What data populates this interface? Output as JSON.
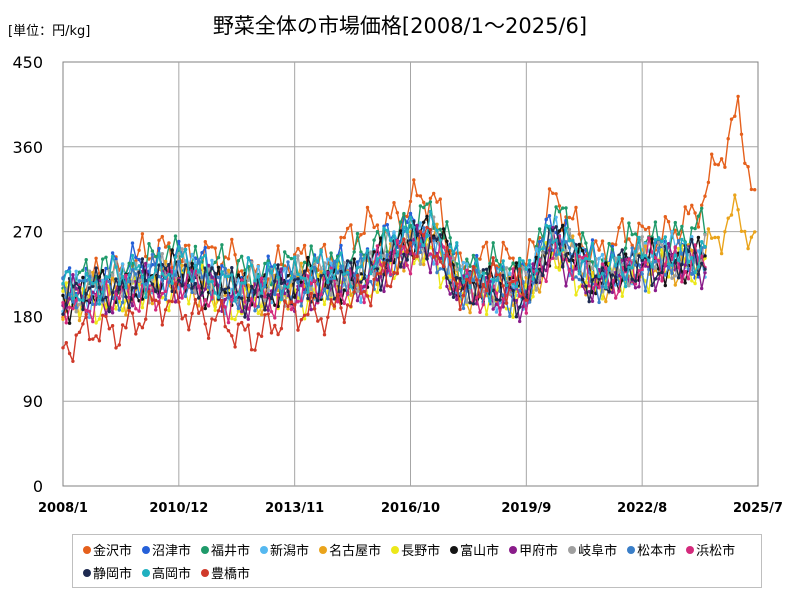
{
  "unit_label": "[単位：円/kg]",
  "chart_data": {
    "type": "line",
    "title": "野菜全体の市場価格[2008/1～2025/6]",
    "xlabel": "",
    "ylabel": "",
    "x_start": "2008-01",
    "x_end": "2025-07",
    "ylim": [
      0,
      450
    ],
    "yticks": [
      0,
      90,
      180,
      270,
      360,
      450
    ],
    "xticks": [
      "2008/1",
      "2010/12",
      "2013/11",
      "2016/10",
      "2019/9",
      "2022/8",
      "2025/7"
    ],
    "grid": true,
    "legend_position": "bottom",
    "series": [
      {
        "name": "金沢市",
        "color": "#e5601c",
        "end": "2025-06",
        "anchors": [
          [
            "2008-01",
            195
          ],
          [
            "2010-01",
            245
          ],
          [
            "2011-08",
            245
          ],
          [
            "2013-01",
            225
          ],
          [
            "2014-09",
            245
          ],
          [
            "2016-10",
            300
          ],
          [
            "2017-05",
            300
          ],
          [
            "2018-01",
            235
          ],
          [
            "2019-09",
            240
          ],
          [
            "2020-05",
            300
          ],
          [
            "2021-06",
            250
          ],
          [
            "2022-08",
            265
          ],
          [
            "2023-12",
            280
          ],
          [
            "2024-06",
            340
          ],
          [
            "2025-01",
            400
          ],
          [
            "2025-06",
            300
          ]
        ]
      },
      {
        "name": "沼津市",
        "color": "#2560d8",
        "end": "2024-03",
        "anchors": [
          [
            "2008-01",
            210
          ],
          [
            "2009-06",
            230
          ],
          [
            "2010-12",
            240
          ],
          [
            "2012-06",
            220
          ],
          [
            "2013-11",
            225
          ],
          [
            "2015-06",
            235
          ],
          [
            "2016-10",
            275
          ],
          [
            "2017-05",
            275
          ],
          [
            "2018-01",
            225
          ],
          [
            "2019-09",
            215
          ],
          [
            "2020-05",
            285
          ],
          [
            "2021-06",
            230
          ],
          [
            "2022-08",
            245
          ],
          [
            "2024-03",
            240
          ]
        ]
      },
      {
        "name": "福井市",
        "color": "#1f9a6a",
        "end": "2024-03",
        "anchors": [
          [
            "2008-01",
            215
          ],
          [
            "2009-06",
            225
          ],
          [
            "2010-12",
            245
          ],
          [
            "2012-06",
            225
          ],
          [
            "2013-11",
            230
          ],
          [
            "2015-06",
            240
          ],
          [
            "2016-10",
            280
          ],
          [
            "2017-05",
            285
          ],
          [
            "2018-01",
            235
          ],
          [
            "2019-09",
            225
          ],
          [
            "2020-05",
            290
          ],
          [
            "2021-06",
            235
          ],
          [
            "2022-08",
            260
          ],
          [
            "2024-03",
            270
          ]
        ]
      },
      {
        "name": "新潟市",
        "color": "#55b8f0",
        "end": "2024-03",
        "anchors": [
          [
            "2008-01",
            200
          ],
          [
            "2009-06",
            210
          ],
          [
            "2010-12",
            230
          ],
          [
            "2012-06",
            205
          ],
          [
            "2013-11",
            215
          ],
          [
            "2015-06",
            220
          ],
          [
            "2016-10",
            260
          ],
          [
            "2017-05",
            260
          ],
          [
            "2018-01",
            215
          ],
          [
            "2019-09",
            205
          ],
          [
            "2020-05",
            270
          ],
          [
            "2021-06",
            220
          ],
          [
            "2022-08",
            240
          ],
          [
            "2024-03",
            250
          ]
        ]
      },
      {
        "name": "名古屋市",
        "color": "#eaa41c",
        "end": "2025-06",
        "anchors": [
          [
            "2008-01",
            195
          ],
          [
            "2009-06",
            205
          ],
          [
            "2010-12",
            220
          ],
          [
            "2012-06",
            200
          ],
          [
            "2013-11",
            210
          ],
          [
            "2015-06",
            215
          ],
          [
            "2016-10",
            255
          ],
          [
            "2017-05",
            255
          ],
          [
            "2018-01",
            210
          ],
          [
            "2019-09",
            205
          ],
          [
            "2020-05",
            255
          ],
          [
            "2021-06",
            215
          ],
          [
            "2022-08",
            235
          ],
          [
            "2024-03",
            240
          ],
          [
            "2025-01",
            300
          ],
          [
            "2025-06",
            250
          ]
        ]
      },
      {
        "name": "長野市",
        "color": "#ece81a",
        "end": "2024-03",
        "anchors": [
          [
            "2008-01",
            190
          ],
          [
            "2009-06",
            200
          ],
          [
            "2010-12",
            215
          ],
          [
            "2012-06",
            195
          ],
          [
            "2013-11",
            205
          ],
          [
            "2015-06",
            210
          ],
          [
            "2016-10",
            245
          ],
          [
            "2017-05",
            250
          ],
          [
            "2018-01",
            205
          ],
          [
            "2019-09",
            200
          ],
          [
            "2020-05",
            250
          ],
          [
            "2021-06",
            210
          ],
          [
            "2022-08",
            230
          ],
          [
            "2024-03",
            235
          ]
        ]
      },
      {
        "name": "富山市",
        "color": "#141414",
        "end": "2024-03",
        "anchors": [
          [
            "2008-01",
            200
          ],
          [
            "2009-06",
            210
          ],
          [
            "2010-12",
            225
          ],
          [
            "2012-06",
            205
          ],
          [
            "2013-11",
            215
          ],
          [
            "2015-06",
            220
          ],
          [
            "2016-10",
            265
          ],
          [
            "2017-05",
            270
          ],
          [
            "2018-01",
            215
          ],
          [
            "2019-09",
            210
          ],
          [
            "2020-05",
            265
          ],
          [
            "2021-06",
            220
          ],
          [
            "2022-08",
            235
          ],
          [
            "2024-03",
            240
          ]
        ]
      },
      {
        "name": "甲府市",
        "color": "#8a1c8a",
        "end": "2024-03",
        "anchors": [
          [
            "2008-01",
            195
          ],
          [
            "2009-06",
            205
          ],
          [
            "2010-12",
            220
          ],
          [
            "2012-06",
            200
          ],
          [
            "2013-11",
            205
          ],
          [
            "2015-06",
            215
          ],
          [
            "2016-10",
            250
          ],
          [
            "2017-05",
            250
          ],
          [
            "2018-01",
            205
          ],
          [
            "2019-09",
            200
          ],
          [
            "2020-05",
            250
          ],
          [
            "2021-06",
            210
          ],
          [
            "2022-08",
            230
          ],
          [
            "2024-03",
            235
          ]
        ]
      },
      {
        "name": "岐阜市",
        "color": "#a0a0a0",
        "end": "2024-03",
        "anchors": [
          [
            "2008-01",
            205
          ],
          [
            "2009-06",
            215
          ],
          [
            "2010-12",
            230
          ],
          [
            "2012-06",
            210
          ],
          [
            "2013-11",
            220
          ],
          [
            "2015-06",
            225
          ],
          [
            "2016-10",
            260
          ],
          [
            "2017-05",
            260
          ],
          [
            "2018-01",
            215
          ],
          [
            "2019-09",
            210
          ],
          [
            "2020-05",
            265
          ],
          [
            "2021-06",
            220
          ],
          [
            "2022-08",
            240
          ],
          [
            "2024-03",
            245
          ]
        ]
      },
      {
        "name": "松本市",
        "color": "#3a7ec8",
        "end": "2024-03",
        "anchors": [
          [
            "2008-01",
            200
          ],
          [
            "2009-06",
            210
          ],
          [
            "2010-12",
            225
          ],
          [
            "2012-06",
            205
          ],
          [
            "2013-11",
            215
          ],
          [
            "2015-06",
            220
          ],
          [
            "2016-10",
            255
          ],
          [
            "2017-05",
            255
          ],
          [
            "2018-01",
            210
          ],
          [
            "2019-09",
            205
          ],
          [
            "2020-05",
            260
          ],
          [
            "2021-06",
            215
          ],
          [
            "2022-08",
            235
          ],
          [
            "2024-03",
            240
          ]
        ]
      },
      {
        "name": "浜松市",
        "color": "#d42a7c",
        "end": "2024-03",
        "anchors": [
          [
            "2008-01",
            195
          ],
          [
            "2009-06",
            200
          ],
          [
            "2010-12",
            215
          ],
          [
            "2012-06",
            195
          ],
          [
            "2013-11",
            205
          ],
          [
            "2015-06",
            215
          ],
          [
            "2016-10",
            250
          ],
          [
            "2017-05",
            255
          ],
          [
            "2018-01",
            210
          ],
          [
            "2019-09",
            200
          ],
          [
            "2020-05",
            255
          ],
          [
            "2021-06",
            215
          ],
          [
            "2022-08",
            235
          ],
          [
            "2024-03",
            240
          ]
        ]
      },
      {
        "name": "静岡市",
        "color": "#1e2a50",
        "end": "2024-03",
        "anchors": [
          [
            "2008-01",
            200
          ],
          [
            "2009-06",
            210
          ],
          [
            "2010-12",
            225
          ],
          [
            "2012-06",
            205
          ],
          [
            "2013-11",
            210
          ],
          [
            "2015-06",
            220
          ],
          [
            "2016-10",
            255
          ],
          [
            "2017-05",
            260
          ],
          [
            "2018-01",
            210
          ],
          [
            "2019-09",
            205
          ],
          [
            "2020-05",
            260
          ],
          [
            "2021-06",
            215
          ],
          [
            "2022-08",
            235
          ],
          [
            "2024-03",
            240
          ]
        ]
      },
      {
        "name": "高岡市",
        "color": "#20b0c0",
        "end": "2024-03",
        "anchors": [
          [
            "2008-01",
            210
          ],
          [
            "2009-06",
            220
          ],
          [
            "2010-12",
            235
          ],
          [
            "2012-06",
            215
          ],
          [
            "2013-11",
            225
          ],
          [
            "2015-06",
            230
          ],
          [
            "2016-10",
            270
          ],
          [
            "2017-05",
            275
          ],
          [
            "2018-01",
            225
          ],
          [
            "2019-09",
            220
          ],
          [
            "2020-05",
            275
          ],
          [
            "2021-06",
            225
          ],
          [
            "2022-08",
            245
          ],
          [
            "2024-03",
            250
          ]
        ]
      },
      {
        "name": "豊橋市",
        "color": "#d03a2a",
        "end": "2019-09",
        "anchors": [
          [
            "2008-01",
            150
          ],
          [
            "2009-06",
            170
          ],
          [
            "2010-12",
            195
          ],
          [
            "2012-06",
            160
          ],
          [
            "2013-11",
            180
          ],
          [
            "2015-06",
            195
          ],
          [
            "2016-10",
            255
          ],
          [
            "2017-05",
            255
          ],
          [
            "2018-01",
            215
          ],
          [
            "2019-09",
            215
          ]
        ]
      }
    ]
  }
}
